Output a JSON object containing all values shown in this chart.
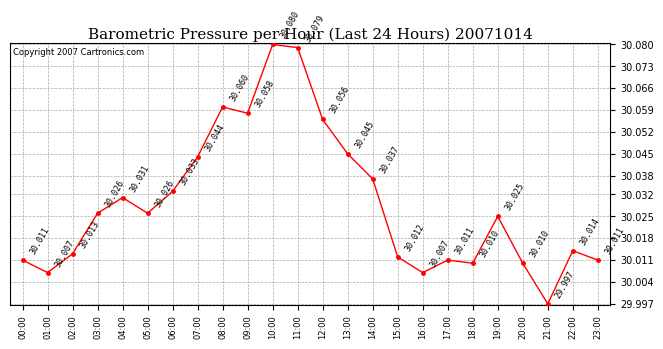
{
  "title": "Barometric Pressure per Hour (Last 24 Hours) 20071014",
  "copyright": "Copyright 2007 Cartronics.com",
  "hours": [
    "00:00",
    "01:00",
    "02:00",
    "03:00",
    "04:00",
    "05:00",
    "06:00",
    "07:00",
    "08:00",
    "09:00",
    "10:00",
    "11:00",
    "12:00",
    "13:00",
    "14:00",
    "15:00",
    "16:00",
    "17:00",
    "18:00",
    "19:00",
    "20:00",
    "21:00",
    "22:00",
    "23:00"
  ],
  "values": [
    30.011,
    30.007,
    30.013,
    30.026,
    30.031,
    30.026,
    30.033,
    30.044,
    30.06,
    30.058,
    30.08,
    30.079,
    30.056,
    30.045,
    30.037,
    30.012,
    30.007,
    30.011,
    30.01,
    30.025,
    30.01,
    29.997,
    30.014,
    30.011
  ],
  "ylim_min": 29.997,
  "ylim_max": 30.08,
  "yticks": [
    29.997,
    30.004,
    30.011,
    30.018,
    30.025,
    30.032,
    30.038,
    30.045,
    30.052,
    30.059,
    30.066,
    30.073,
    30.08
  ],
  "line_color": "red",
  "marker": "o",
  "marker_size": 2.5,
  "bg_color": "white",
  "grid_color": "#aaaaaa",
  "title_fontsize": 11,
  "annotation_fontsize": 6,
  "copyright_fontsize": 6,
  "tick_fontsize": 7,
  "xtick_fontsize": 6
}
